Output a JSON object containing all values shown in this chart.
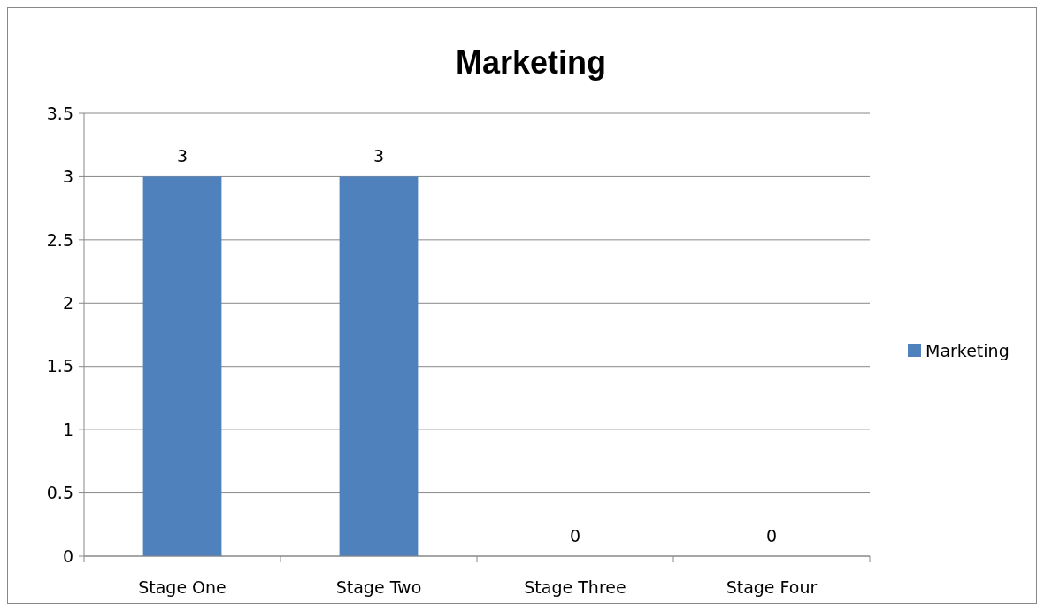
{
  "chart_data": {
    "type": "bar",
    "title": "Marketing",
    "categories": [
      "Stage One",
      "Stage Two",
      "Stage Three",
      "Stage Four"
    ],
    "series": [
      {
        "name": "Marketing",
        "color": "#4f81bd",
        "values": [
          3,
          3,
          0,
          0
        ]
      }
    ],
    "ylim": [
      0,
      3.5
    ],
    "yticks": [
      0,
      0.5,
      1,
      1.5,
      2,
      2.5,
      3,
      3.5
    ],
    "grid": "y",
    "legend": "right",
    "data_labels": true
  }
}
